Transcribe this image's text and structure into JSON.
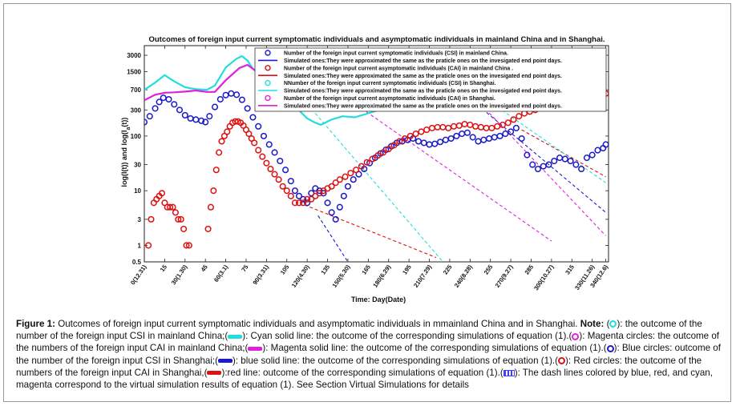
{
  "chart_data": {
    "type": "scatter",
    "title": "Outcomes of foreign input current symptomatic individuals and asymptomatic individuals in mainland  China and in Shanghai.",
    "xlabel": "Time: Day(Date)",
    "ylabel": "log(I(t)) and log(I_a(t))",
    "y_scale": "log",
    "xlim": [
      0,
      342
    ],
    "ylim": [
      0.5,
      4500
    ],
    "x_ticks": [
      {
        "x": 0,
        "label": "0(12.31)"
      },
      {
        "x": 15,
        "label": "15"
      },
      {
        "x": 30,
        "label": "30(1.30)"
      },
      {
        "x": 45,
        "label": "45"
      },
      {
        "x": 60,
        "label": "60(3.1)"
      },
      {
        "x": 75,
        "label": "75"
      },
      {
        "x": 90,
        "label": "90(3.31)"
      },
      {
        "x": 105,
        "label": "105"
      },
      {
        "x": 120,
        "label": "120(4.30)"
      },
      {
        "x": 135,
        "label": "135"
      },
      {
        "x": 150,
        "label": "150(5.30)"
      },
      {
        "x": 165,
        "label": "165"
      },
      {
        "x": 180,
        "label": "180(6.29)"
      },
      {
        "x": 195,
        "label": "195"
      },
      {
        "x": 210,
        "label": "210(7.29)"
      },
      {
        "x": 225,
        "label": "225"
      },
      {
        "x": 240,
        "label": "240(8.28)"
      },
      {
        "x": 255,
        "label": "255"
      },
      {
        "x": 270,
        "label": "270(9.27)"
      },
      {
        "x": 285,
        "label": "285"
      },
      {
        "x": 300,
        "label": "300(10.27)"
      },
      {
        "x": 315,
        "label": "315"
      },
      {
        "x": 330,
        "label": "330(11.26)"
      },
      {
        "x": 340,
        "label": "340(12.6)"
      }
    ],
    "y_ticks": [
      {
        "y": 0.5,
        "label": "0.5"
      },
      {
        "y": 1,
        "label": "1"
      },
      {
        "y": 3,
        "label": "3"
      },
      {
        "y": 10,
        "label": "10"
      },
      {
        "y": 30,
        "label": "30"
      },
      {
        "y": 100,
        "label": "100"
      },
      {
        "y": 300,
        "label": "300"
      },
      {
        "y": 700,
        "label": "700"
      },
      {
        "y": 1500,
        "label": "1500"
      },
      {
        "y": 3000,
        "label": "3000"
      }
    ],
    "grid": false,
    "legend_position": "top-right",
    "legend": [
      {
        "kind": "circle",
        "color": "#1a1acc",
        "label": "Number of the foreign input current symptomatic individuals (CSI) in mainland China."
      },
      {
        "kind": "line",
        "color": "#1a1acc",
        "label": "Simulated ones:They were  approximated the same as the praticle ones on the invesigated end point days."
      },
      {
        "kind": "circle",
        "color": "#dd1111",
        "label": "Number of the foreign input current asymptomatic individuals (CAI) in mainland China ."
      },
      {
        "kind": "line",
        "color": "#dd1111",
        "label": "Simulated ones:They were  approximated the same as the praticle ones on the invesigated end point days."
      },
      {
        "kind": "circle",
        "color": "#22dddd",
        "label": "NNumber of the foreign input current symptomatic individuals (CSI)  in Shanghai."
      },
      {
        "kind": "line",
        "color": "#22dddd",
        "label": "Simulated ones:They were  approximated the same as the praticle ones on the invesigated end point days."
      },
      {
        "kind": "circle",
        "color": "#dd22dd",
        "label": "Number of the foreign input current asymptomatic individuals (CAI)  in Shanghai."
      },
      {
        "kind": "line",
        "color": "#dd22dd",
        "label": "Simulated ones:They were  approximated the same as the praticle ones on the invesigated end point days."
      }
    ],
    "series": [
      {
        "color": "#22dddd",
        "style": "solid-line",
        "x": [
          0,
          8,
          15,
          22,
          30,
          38,
          46,
          52,
          60,
          68,
          72,
          76,
          80,
          88,
          96,
          104,
          112,
          120,
          125,
          130,
          138,
          146,
          155,
          165,
          175,
          185,
          195,
          205,
          215,
          225,
          235,
          245,
          255,
          265,
          275,
          285,
          295,
          305,
          315,
          325,
          330,
          335,
          340
        ],
        "y": [
          700,
          950,
          1300,
          1000,
          780,
          720,
          700,
          840,
          1800,
          2600,
          2900,
          2400,
          1700,
          1100,
          760,
          500,
          330,
          210,
          180,
          160,
          200,
          230,
          220,
          260,
          310,
          380,
          460,
          540,
          560,
          560,
          600,
          680,
          720,
          720,
          730,
          720,
          720,
          740,
          740,
          680,
          640,
          600,
          560
        ]
      },
      {
        "color": "#dd22dd",
        "style": "solid-line",
        "x": [
          0,
          8,
          15,
          22,
          30,
          38,
          46,
          52,
          60,
          70,
          76,
          80,
          88,
          96,
          104,
          112,
          120,
          130,
          140,
          150,
          160,
          170,
          180,
          190,
          200,
          210,
          220,
          230,
          240,
          250,
          260,
          270,
          280,
          290,
          300,
          310,
          320,
          330,
          335,
          340
        ],
        "y": [
          450,
          570,
          620,
          630,
          650,
          680,
          640,
          640,
          1050,
          1750,
          2000,
          1700,
          1250,
          1000,
          900,
          820,
          780,
          700,
          560,
          470,
          460,
          480,
          500,
          520,
          510,
          540,
          610,
          700,
          720,
          730,
          760,
          820,
          900,
          1000,
          1200,
          1300,
          1380,
          1500,
          1700,
          1800
        ]
      },
      {
        "color": "#1a1acc",
        "style": "circles",
        "x": [
          0,
          4,
          8,
          11,
          14,
          18,
          22,
          26,
          30,
          34,
          38,
          42,
          45,
          48,
          52,
          56,
          60,
          64,
          68,
          72,
          76,
          80,
          84,
          88,
          92,
          96,
          100,
          104,
          108,
          111,
          114,
          117,
          120,
          123,
          126,
          129,
          132,
          135,
          138,
          141,
          144,
          147,
          150,
          154,
          158,
          162,
          166,
          170,
          174,
          178,
          182,
          186,
          190,
          194,
          198,
          202,
          206,
          210,
          214,
          218,
          222,
          226,
          230,
          234,
          238,
          242,
          246,
          250,
          254,
          258,
          262,
          266,
          270,
          274,
          278,
          282,
          286,
          290,
          294,
          298,
          302,
          306,
          310,
          314,
          318,
          322,
          326,
          330,
          334,
          338,
          340
        ],
        "y": [
          180,
          230,
          320,
          420,
          500,
          470,
          380,
          300,
          240,
          210,
          200,
          190,
          180,
          230,
          340,
          470,
          560,
          600,
          570,
          460,
          320,
          220,
          150,
          100,
          70,
          50,
          35,
          24,
          15,
          10,
          8,
          7,
          6,
          9,
          11,
          10,
          9,
          6,
          4,
          3,
          5,
          8,
          12,
          16,
          20,
          25,
          32,
          40,
          48,
          56,
          65,
          75,
          80,
          85,
          90,
          80,
          75,
          70,
          72,
          78,
          85,
          90,
          100,
          110,
          115,
          95,
          80,
          85,
          90,
          95,
          100,
          110,
          120,
          140,
          90,
          45,
          30,
          25,
          28,
          30,
          35,
          40,
          38,
          35,
          30,
          25,
          40,
          45,
          55,
          60,
          70
        ]
      },
      {
        "color": "#dd1111",
        "style": "circles",
        "x": [
          3,
          5,
          7,
          9,
          11,
          13,
          15,
          17,
          19,
          21,
          23,
          25,
          27,
          29,
          31,
          33,
          47,
          49,
          51,
          53,
          55,
          57,
          59,
          61,
          63,
          65,
          67,
          69,
          71,
          73,
          75,
          77,
          79,
          81,
          84,
          87,
          90,
          93,
          96,
          99,
          102,
          105,
          108,
          111,
          114,
          117,
          120,
          123,
          126,
          129,
          132,
          135,
          138,
          141,
          144,
          148,
          152,
          156,
          160,
          164,
          168,
          172,
          176,
          180,
          184,
          188,
          192,
          196,
          200,
          204,
          208,
          212,
          216,
          220,
          224,
          228,
          232,
          236,
          240,
          244,
          248,
          252,
          256,
          260,
          264,
          268,
          272,
          276,
          280,
          284,
          288,
          292,
          296,
          300,
          304,
          308,
          312,
          316,
          320,
          324,
          328,
          332,
          336,
          340
        ],
        "y": [
          1,
          3,
          6,
          7,
          8,
          9,
          6,
          5,
          5,
          5,
          4,
          3,
          3,
          2,
          1,
          1,
          2,
          5,
          10,
          24,
          50,
          80,
          100,
          120,
          150,
          175,
          185,
          185,
          175,
          155,
          130,
          110,
          90,
          75,
          55,
          42,
          32,
          25,
          20,
          16,
          12,
          10,
          8,
          6,
          6,
          6,
          7,
          7,
          8,
          9,
          10,
          11,
          12,
          14,
          16,
          18,
          21,
          24,
          28,
          33,
          38,
          44,
          50,
          58,
          68,
          80,
          90,
          100,
          110,
          120,
          130,
          140,
          145,
          145,
          140,
          150,
          155,
          165,
          160,
          150,
          145,
          140,
          140,
          150,
          160,
          175,
          200,
          230,
          260,
          280,
          300,
          320,
          330,
          340,
          350,
          370,
          380,
          400,
          420,
          450,
          480,
          500,
          520,
          600
        ]
      },
      {
        "color": "#1a1acc",
        "style": "dash",
        "x": [
          128,
          150
        ],
        "y": [
          3.5,
          0.5
        ]
      },
      {
        "color": "#dd1111",
        "style": "dash",
        "x": [
          118,
          215
        ],
        "y": [
          5.5,
          0.6
        ]
      },
      {
        "color": "#22dddd",
        "style": "dash",
        "x": [
          126,
          220
        ],
        "y": [
          260,
          0.5
        ]
      },
      {
        "color": "#dd22dd",
        "style": "dash",
        "x": [
          150,
          300
        ],
        "y": [
          480,
          1.2
        ]
      },
      {
        "color": "#1a1acc",
        "style": "dash",
        "x": [
          230,
          340
        ],
        "y": [
          780,
          4
        ]
      },
      {
        "color": "#dd1111",
        "style": "dash",
        "x": [
          278,
          340
        ],
        "y": [
          130,
          18
        ]
      },
      {
        "color": "#22dddd",
        "style": "dash",
        "x": [
          240,
          340
        ],
        "y": [
          760,
          14
        ]
      },
      {
        "color": "#dd22dd",
        "style": "dash",
        "x": [
          240,
          340
        ],
        "y": [
          620,
          1.5
        ]
      }
    ]
  },
  "caption": {
    "label": "Figure 1:",
    "text1": " Outcomes of foreign input current symptomatic individuals and asymptomatic individuals in mmainland China and in Shanghai. ",
    "note": "Note:",
    "text2": " (",
    "text3": "): the outcome of the number of the foreign input CSI in mainland China;(",
    "text4": "): Cyan solid line: the outcome of the corresponding simulations of equation (1).(",
    "text5": "): Magenta circles: the outcome of the numbers of the foreign input CAI in mainland China;(",
    "text6": "): Magenta solid line: the outcome of the corresponding simulations of equation (1).(",
    "text7": "): Blue circles: outcome of the number of the foreign input CSI in Shanghai;(",
    "text8": "): blue solid line: the outcome of the corresponding simulations of equation (1).(",
    "text9": "): Red circles: the outcome of the numbers of the foreign input CAI in Shanghai,(",
    "text10": "):red line: outcome of the corresponding simulations of equation (1).(",
    "text11": "): The dash lines colored by blue, red, and cyan, magenta correspond to the virtual simulation results of equation (1). See Section Virtual Simulations for details",
    "colors": {
      "cyan": "#22dddd",
      "magenta": "#dd22dd",
      "blue": "#1a1acc",
      "red": "#dd1111"
    }
  }
}
